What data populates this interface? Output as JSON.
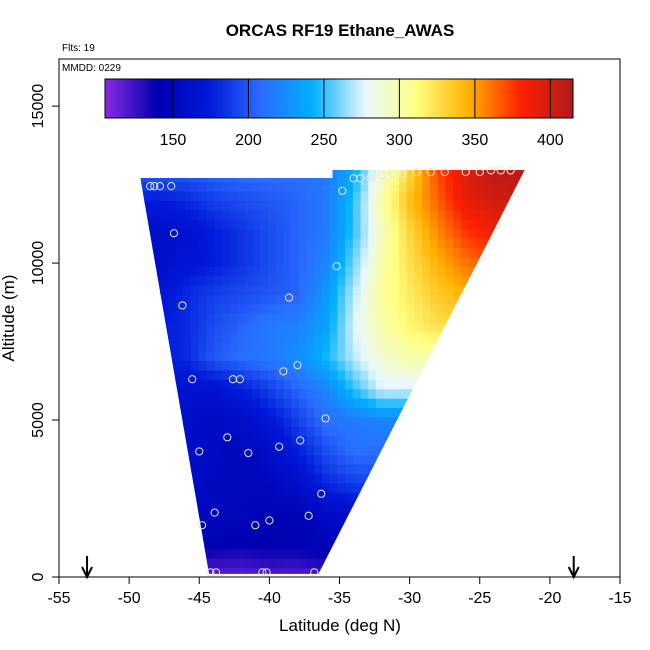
{
  "chart_data": {
    "type": "heatmap",
    "title": "ORCAS RF19 Ethane_AWAS",
    "flights_label": "Flts: 19",
    "date_label": "MMDD: 0229",
    "xlabel": "Latitude (deg N)",
    "ylabel": "Altitude (m)",
    "xlim": [
      -55,
      -15
    ],
    "ylim": [
      0,
      16500
    ],
    "x_ticks": [
      -55,
      -50,
      -45,
      -40,
      -35,
      -30,
      -25,
      -20,
      -15
    ],
    "y_ticks": [
      0,
      5000,
      10000,
      15000
    ],
    "colorbar": {
      "range": [
        105,
        415
      ],
      "ticks": [
        150,
        200,
        250,
        300,
        350,
        400
      ],
      "colors": [
        "#8a2be2",
        "#0000b0",
        "#0018d8",
        "#2a6cff",
        "#00b0ff",
        "#e8f8ff",
        "#ffff80",
        "#ffb000",
        "#ff2000",
        "#b01a1a"
      ]
    },
    "curtain_outline": {
      "lat_at_bottom": [
        -44.3,
        -36.5
      ],
      "lat_at_top": [
        -49.2,
        -21.8
      ],
      "top_altitude": 12900,
      "bottom_altitude": 100
    },
    "field": {
      "altitudes": [
        100,
        1000,
        2000,
        3000,
        4000,
        5000,
        6000,
        7000,
        8000,
        9000,
        10000,
        11000,
        12000,
        12900
      ],
      "latitudes": [
        -50,
        -48,
        -46,
        -44,
        -42,
        -40,
        -38,
        -36,
        -34,
        -32,
        -30,
        -28,
        -26,
        -24,
        -22
      ],
      "values": [
        [
          125,
          125,
          120,
          118,
          118,
          122,
          120,
          125,
          130,
          130,
          130,
          130,
          130,
          130,
          130
        ],
        [
          150,
          150,
          145,
          140,
          138,
          140,
          140,
          145,
          150,
          150,
          150,
          150,
          150,
          150,
          150
        ],
        [
          160,
          160,
          155,
          150,
          148,
          145,
          145,
          155,
          160,
          160,
          160,
          160,
          160,
          160,
          160
        ],
        [
          165,
          165,
          160,
          152,
          150,
          150,
          160,
          180,
          190,
          190,
          190,
          190,
          190,
          190,
          190
        ],
        [
          165,
          165,
          160,
          155,
          150,
          160,
          175,
          195,
          210,
          210,
          210,
          210,
          210,
          210,
          210
        ],
        [
          165,
          165,
          160,
          155,
          160,
          170,
          190,
          210,
          215,
          220,
          220,
          220,
          220,
          220,
          220
        ],
        [
          170,
          170,
          165,
          165,
          175,
          190,
          205,
          220,
          250,
          275,
          275,
          275,
          275,
          275,
          275
        ],
        [
          175,
          175,
          180,
          200,
          210,
          215,
          225,
          245,
          270,
          290,
          300,
          300,
          300,
          300,
          300
        ],
        [
          175,
          175,
          180,
          195,
          205,
          215,
          220,
          235,
          275,
          300,
          315,
          325,
          330,
          330,
          330
        ],
        [
          170,
          170,
          180,
          190,
          195,
          200,
          205,
          230,
          270,
          305,
          320,
          335,
          345,
          345,
          345
        ],
        [
          160,
          160,
          170,
          175,
          185,
          195,
          205,
          220,
          260,
          300,
          325,
          345,
          360,
          370,
          370
        ],
        [
          160,
          160,
          165,
          175,
          185,
          195,
          205,
          215,
          250,
          295,
          330,
          355,
          375,
          385,
          390
        ],
        [
          175,
          175,
          180,
          190,
          195,
          200,
          205,
          215,
          250,
          300,
          340,
          365,
          390,
          400,
          405
        ],
        [
          200,
          200,
          200,
          205,
          210,
          210,
          210,
          215,
          240,
          290,
          330,
          370,
          395,
          410,
          410
        ]
      ]
    },
    "sample_points": [
      {
        "x": -48.5,
        "y": 12450
      },
      {
        "x": -48.2,
        "y": 12450
      },
      {
        "x": -47.8,
        "y": 12450
      },
      {
        "x": -47.0,
        "y": 12450
      },
      {
        "x": -46.8,
        "y": 10950
      },
      {
        "x": -46.2,
        "y": 8650
      },
      {
        "x": -45.5,
        "y": 6300
      },
      {
        "x": -45.0,
        "y": 4000
      },
      {
        "x": -44.8,
        "y": 1650
      },
      {
        "x": -44.2,
        "y": 150
      },
      {
        "x": -43.8,
        "y": 150
      },
      {
        "x": -43.9,
        "y": 2050
      },
      {
        "x": -43.0,
        "y": 4450
      },
      {
        "x": -42.6,
        "y": 6300
      },
      {
        "x": -42.1,
        "y": 6300
      },
      {
        "x": -41.5,
        "y": 3950
      },
      {
        "x": -41.0,
        "y": 1650
      },
      {
        "x": -40.5,
        "y": 150
      },
      {
        "x": -40.2,
        "y": 150
      },
      {
        "x": -40.0,
        "y": 1800
      },
      {
        "x": -39.3,
        "y": 4150
      },
      {
        "x": -39.0,
        "y": 6550
      },
      {
        "x": -38.6,
        "y": 8900
      },
      {
        "x": -38.0,
        "y": 6750
      },
      {
        "x": -37.8,
        "y": 4350
      },
      {
        "x": -37.2,
        "y": 1950
      },
      {
        "x": -36.8,
        "y": 150
      },
      {
        "x": -36.3,
        "y": 2650
      },
      {
        "x": -36.0,
        "y": 5050
      },
      {
        "x": -35.2,
        "y": 9900
      },
      {
        "x": -34.8,
        "y": 12300
      },
      {
        "x": -34.0,
        "y": 12700
      },
      {
        "x": -33.5,
        "y": 12700
      },
      {
        "x": -32.8,
        "y": 12700
      },
      {
        "x": -32.0,
        "y": 12800
      },
      {
        "x": -31.2,
        "y": 12850
      },
      {
        "x": -30.5,
        "y": 12850
      },
      {
        "x": -29.5,
        "y": 12900
      },
      {
        "x": -28.5,
        "y": 12900
      },
      {
        "x": -27.5,
        "y": 12900
      },
      {
        "x": -26.0,
        "y": 12900
      },
      {
        "x": -25.0,
        "y": 12900
      },
      {
        "x": -24.2,
        "y": 12950
      },
      {
        "x": -23.5,
        "y": 12950
      },
      {
        "x": -22.8,
        "y": 12950
      }
    ],
    "arrows": [
      -53.0,
      -18.3
    ]
  }
}
